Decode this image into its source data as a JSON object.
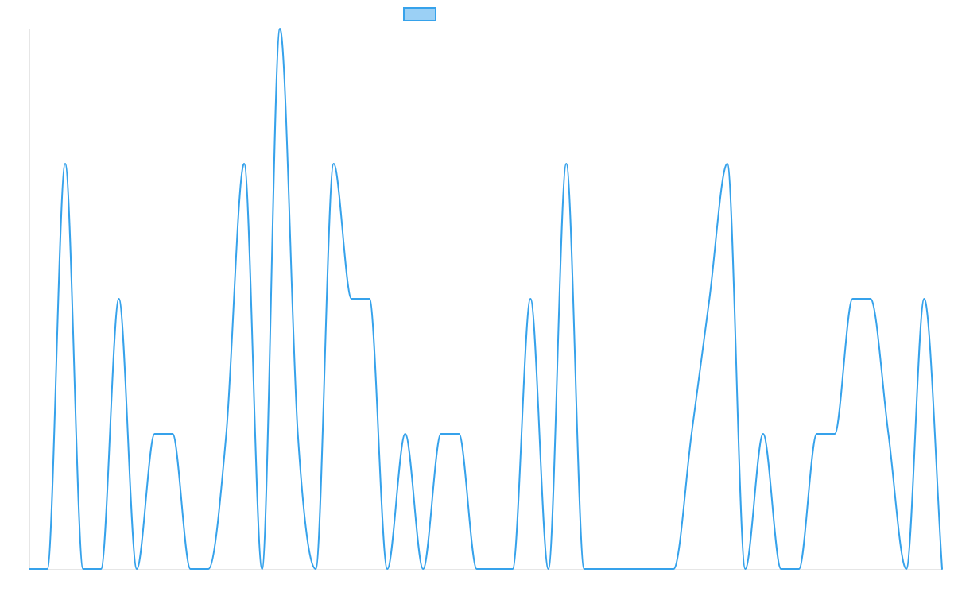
{
  "chart_data": {
    "type": "line",
    "title": "",
    "xlabel": "",
    "ylabel": "",
    "grid": false,
    "legend_position": "top",
    "ylim": [
      0,
      4
    ],
    "x": [
      0,
      1,
      2,
      3,
      4,
      5,
      6,
      7,
      8,
      9,
      10,
      11,
      12,
      13,
      14,
      15,
      16,
      17,
      18,
      19,
      20,
      21,
      22,
      23,
      24,
      25,
      26,
      27,
      28,
      29,
      30,
      31,
      32,
      33,
      34,
      35,
      36,
      37,
      38,
      39,
      40,
      41,
      42,
      43,
      44,
      45,
      46,
      47,
      48,
      49,
      50,
      51
    ],
    "series": [
      {
        "name": "",
        "color": "#36a2eb",
        "fill": "#9bd0f5",
        "values": [
          0,
          0,
          3,
          0,
          0,
          2,
          0,
          1,
          1,
          0,
          0,
          1,
          3,
          0,
          4,
          1,
          0,
          3,
          2,
          2,
          0,
          1,
          0,
          1,
          1,
          0,
          0,
          0,
          2,
          0,
          3,
          0,
          0,
          0,
          0,
          0,
          0,
          1,
          2,
          3,
          0,
          1,
          0,
          0,
          1,
          1,
          2,
          2,
          1,
          0,
          2,
          0
        ]
      }
    ]
  }
}
